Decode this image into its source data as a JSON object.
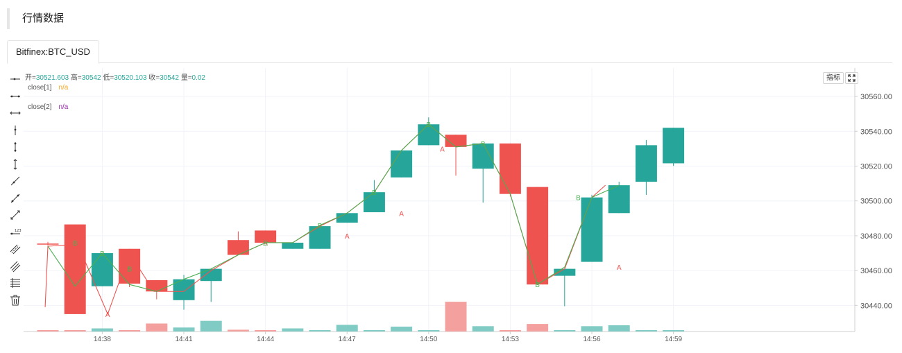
{
  "page": {
    "title": "行情数据"
  },
  "tabs": [
    {
      "label": "Bitfinex:BTC_USD",
      "active": true
    }
  ],
  "ohlc": {
    "open_label": "开",
    "open": "30521.603",
    "high_label": "高",
    "high": "30542",
    "low_label": "低",
    "low": "30520.103",
    "close_label": "收",
    "close": "30542",
    "vol_label": "量",
    "vol": "0.02"
  },
  "legend": [
    {
      "name": "close[1]",
      "value": "n/a",
      "color": "#f5a623"
    },
    {
      "name": "close[2]",
      "value": "n/a",
      "color": "#9c27b0"
    }
  ],
  "controls": {
    "indicator_label": "指标",
    "fullscreen_icon": "fullscreen-icon"
  },
  "toolbar": {
    "icons": [
      "horizontal-ray-icon",
      "horizontal-segment-icon",
      "horizontal-line-icon",
      "vertical-ray-icon",
      "vertical-segment-icon",
      "vertical-line-icon",
      "trend-ray-icon",
      "trend-segment-icon",
      "trend-line-icon",
      "price-label-icon",
      "parallel-channel-icon",
      "parallel-lines-icon",
      "fibonacci-icon",
      "delete-icon"
    ]
  },
  "colors": {
    "up": "#26a69a",
    "down": "#ef5350",
    "up_volume": "#80cbc4",
    "down_volume": "#f4a09e",
    "series_a": "#ef5350",
    "series_b": "#4caf50",
    "grid": "#f0f3fa",
    "axis_text": "#555555"
  },
  "chart_data": {
    "type": "candlestick",
    "ylim": [
      30425,
      30566
    ],
    "yticks": [
      30440,
      30460,
      30480,
      30500,
      30520,
      30540,
      30560
    ],
    "ytick_labels": [
      "30440.00",
      "30460.00",
      "30480.00",
      "30500.00",
      "30520.00",
      "30540.00",
      "30560.00"
    ],
    "xticks": [
      {
        "label": "14:38",
        "index": 2
      },
      {
        "label": "14:41",
        "index": 5
      },
      {
        "label": "14:44",
        "index": 8
      },
      {
        "label": "14:47",
        "index": 11
      },
      {
        "label": "14:50",
        "index": 14
      },
      {
        "label": "14:53",
        "index": 17
      },
      {
        "label": "14:56",
        "index": 20
      },
      {
        "label": "14:59",
        "index": 23
      }
    ],
    "volume_max": 1,
    "candles": [
      {
        "o": 30475.5,
        "h": 30476.5,
        "l": 30474.5,
        "c": 30475.0,
        "v": 0.02
      },
      {
        "o": 30486.5,
        "h": 30486.5,
        "l": 30435.0,
        "c": 30435.0,
        "v": 0.0
      },
      {
        "o": 30451.0,
        "h": 30470.0,
        "l": 30451.0,
        "c": 30470.0,
        "v": 0.07
      },
      {
        "o": 30472.5,
        "h": 30472.5,
        "l": 30450.5,
        "c": 30452.5,
        "v": 0.0
      },
      {
        "o": 30454.5,
        "h": 30454.5,
        "l": 30443.5,
        "c": 30448.0,
        "v": 0.18
      },
      {
        "o": 30443.0,
        "h": 30457.5,
        "l": 30437.5,
        "c": 30455.0,
        "v": 0.09
      },
      {
        "o": 30454.0,
        "h": 30461.0,
        "l": 30442.0,
        "c": 30461.0,
        "v": 0.24
      },
      {
        "o": 30477.5,
        "h": 30482.5,
        "l": 30469.0,
        "c": 30469.0,
        "v": 0.04
      },
      {
        "o": 30483.0,
        "h": 30483.0,
        "l": 30476.0,
        "c": 30476.0,
        "v": 0.0
      },
      {
        "o": 30472.5,
        "h": 30476.0,
        "l": 30472.5,
        "c": 30476.0,
        "v": 0.07
      },
      {
        "o": 30472.5,
        "h": 30485.5,
        "l": 30472.5,
        "c": 30485.5,
        "v": 0.0
      },
      {
        "o": 30487.5,
        "h": 30493.0,
        "l": 30487.5,
        "c": 30493.0,
        "v": 0.15
      },
      {
        "o": 30493.5,
        "h": 30512.0,
        "l": 30493.5,
        "c": 30505.0,
        "v": 0.02
      },
      {
        "o": 30513.5,
        "h": 30529.0,
        "l": 30513.5,
        "c": 30529.0,
        "v": 0.11
      },
      {
        "o": 30532.0,
        "h": 30548.0,
        "l": 30532.0,
        "c": 30544.0,
        "v": 0.03
      },
      {
        "o": 30538.0,
        "h": 30538.0,
        "l": 30514.5,
        "c": 30531.0,
        "v": 0.67
      },
      {
        "o": 30518.5,
        "h": 30533.0,
        "l": 30499.0,
        "c": 30533.0,
        "v": 0.12
      },
      {
        "o": 30533.0,
        "h": 30533.0,
        "l": 30502.5,
        "c": 30504.0,
        "v": 0.01
      },
      {
        "o": 30508.0,
        "h": 30508.0,
        "l": 30452.0,
        "c": 30452.0,
        "v": 0.17
      },
      {
        "o": 30457.0,
        "h": 30461.0,
        "l": 30439.5,
        "c": 30461.0,
        "v": 0.03
      },
      {
        "o": 30465.0,
        "h": 30503.5,
        "l": 30465.0,
        "c": 30502.0,
        "v": 0.12
      },
      {
        "o": 30493.0,
        "h": 30511.0,
        "l": 30493.0,
        "c": 30509.0,
        "v": 0.14
      },
      {
        "o": 30511.0,
        "h": 30535.0,
        "l": 30503.5,
        "c": 30532.0,
        "v": 0.03
      },
      {
        "o": 30521.603,
        "h": 30542.0,
        "l": 30520.103,
        "c": 30542.0,
        "v": 0.0
      }
    ],
    "series": [
      {
        "name": "close[1]",
        "color": "#ef5350",
        "marker": "A",
        "points": [
          {
            "x": -0.1,
            "y": 30439
          },
          {
            "x": 0.0,
            "y": 30474
          },
          {
            "x": 1.1,
            "y": 30475
          },
          {
            "x": 2.2,
            "y": 30435
          },
          {
            "x": 3.0,
            "y": 30470
          },
          {
            "x": 3.9,
            "y": 30448
          },
          {
            "x": 5.0,
            "y": 30448
          },
          {
            "x": 6.0,
            "y": 30460
          },
          {
            "x": 7.0,
            "y": 30469
          },
          {
            "x": 8.0,
            "y": 30476
          },
          {
            "x": 9.0,
            "y": 30476
          },
          {
            "x": 10.0,
            "y": 30485.5
          },
          {
            "x": 11.0,
            "y": 30493
          },
          {
            "x": 12.0,
            "y": 30505
          },
          {
            "x": 13.0,
            "y": 30529
          },
          {
            "x": 14.0,
            "y": 30544
          },
          {
            "x": 15.0,
            "y": 30531
          },
          {
            "x": 16.0,
            "y": 30533
          },
          {
            "x": 17.0,
            "y": 30504
          },
          {
            "x": 18.0,
            "y": 30452
          },
          {
            "x": 19.0,
            "y": 30461
          },
          {
            "x": 20.0,
            "y": 30502
          },
          {
            "x": 20.5,
            "y": 30509
          }
        ],
        "marker_points": [
          {
            "x": 2.2,
            "y": 30435
          },
          {
            "x": 8.0,
            "y": 30476
          },
          {
            "x": 11.0,
            "y": 30480
          },
          {
            "x": 13.0,
            "y": 30493
          },
          {
            "x": 14.5,
            "y": 30530
          },
          {
            "x": 18.0,
            "y": 30504
          },
          {
            "x": 21.0,
            "y": 30462
          }
        ]
      },
      {
        "name": "close[2]",
        "color": "#4caf50",
        "marker": "B",
        "points": [
          {
            "x": 0.0,
            "y": 30474
          },
          {
            "x": 1.0,
            "y": 30451
          },
          {
            "x": 2.0,
            "y": 30470
          },
          {
            "x": 3.0,
            "y": 30452
          },
          {
            "x": 4.0,
            "y": 30448
          },
          {
            "x": 5.0,
            "y": 30455
          },
          {
            "x": 6.0,
            "y": 30461
          },
          {
            "x": 7.0,
            "y": 30469
          },
          {
            "x": 8.0,
            "y": 30476
          },
          {
            "x": 9.0,
            "y": 30476
          },
          {
            "x": 10.0,
            "y": 30486
          },
          {
            "x": 11.0,
            "y": 30493
          },
          {
            "x": 12.0,
            "y": 30505
          },
          {
            "x": 13.0,
            "y": 30529
          },
          {
            "x": 14.0,
            "y": 30544
          },
          {
            "x": 15.0,
            "y": 30531
          },
          {
            "x": 16.0,
            "y": 30533
          },
          {
            "x": 17.0,
            "y": 30504
          },
          {
            "x": 18.0,
            "y": 30452
          },
          {
            "x": 19.0,
            "y": 30462
          },
          {
            "x": 20.0,
            "y": 30502
          },
          {
            "x": 21.0,
            "y": 30509
          }
        ],
        "marker_points": [
          {
            "x": 1.0,
            "y": 30476
          },
          {
            "x": 2.0,
            "y": 30470
          },
          {
            "x": 3.0,
            "y": 30461
          },
          {
            "x": 8.0,
            "y": 30476
          },
          {
            "x": 10.0,
            "y": 30486
          },
          {
            "x": 12.0,
            "y": 30505
          },
          {
            "x": 14.0,
            "y": 30544
          },
          {
            "x": 16.0,
            "y": 30533
          },
          {
            "x": 18.0,
            "y": 30452
          },
          {
            "x": 19.5,
            "y": 30502
          }
        ]
      }
    ]
  }
}
